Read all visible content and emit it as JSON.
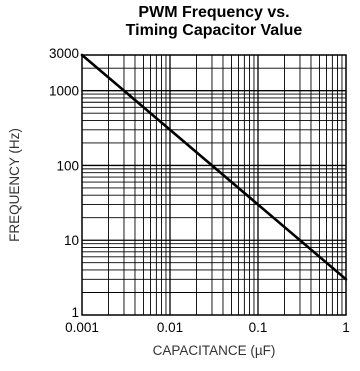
{
  "chart_data": {
    "type": "line",
    "title_line1": "PWM Frequency vs.",
    "title_line2": "Timing Capacitor Value",
    "xlabel": "CAPACITANCE (µF)",
    "ylabel": "FREQUENCY (Hz)",
    "x_scale": "log",
    "y_scale": "log",
    "xlim": [
      0.001,
      1
    ],
    "ylim": [
      1,
      3000
    ],
    "grid": true,
    "x_ticks": [
      "0.001",
      "0.01",
      "0.1",
      "1"
    ],
    "y_ticks": [
      "1",
      "10",
      "100",
      "1000",
      "3000"
    ],
    "series": [
      {
        "x": [
          0.001,
          1
        ],
        "y": [
          3000,
          3
        ]
      }
    ],
    "line_color": "#000000"
  }
}
